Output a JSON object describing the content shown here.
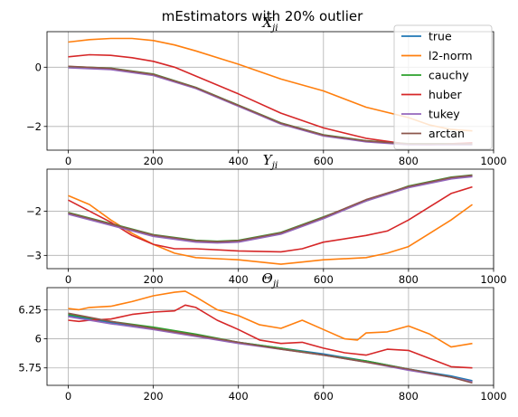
{
  "figure": {
    "suptitle": "mEstimators with 20% outlier"
  },
  "colors": {
    "true": "#1f77b4",
    "l2-norm": "#ff7f0e",
    "cauchy": "#2ca02c",
    "huber": "#d62728",
    "tukey": "#9467bd",
    "arctan": "#8c564b"
  },
  "legend": {
    "placement": "top-right of first panel",
    "entries": [
      "true",
      "l2-norm",
      "cauchy",
      "huber",
      "tukey",
      "arctan"
    ]
  },
  "chart_data": [
    {
      "type": "line",
      "title": "X_ji",
      "title_main": "X",
      "title_sub": "ji",
      "xlim": [
        -50,
        1000
      ],
      "ylim": [
        -2.8,
        1.2
      ],
      "xticks": [
        0,
        200,
        400,
        600,
        800,
        1000
      ],
      "yticks": [
        -2,
        0
      ],
      "grid": true,
      "series": [
        {
          "name": "true",
          "points": [
            [
              0,
              0.0
            ],
            [
              100,
              -0.05
            ],
            [
              200,
              -0.25
            ],
            [
              300,
              -0.7
            ],
            [
              400,
              -1.3
            ],
            [
              500,
              -1.9
            ],
            [
              600,
              -2.3
            ],
            [
              700,
              -2.5
            ],
            [
              800,
              -2.6
            ],
            [
              950,
              -2.6
            ]
          ]
        },
        {
          "name": "l2-norm",
          "points": [
            [
              0,
              0.85
            ],
            [
              50,
              0.93
            ],
            [
              100,
              0.97
            ],
            [
              150,
              0.97
            ],
            [
              200,
              0.9
            ],
            [
              250,
              0.75
            ],
            [
              300,
              0.55
            ],
            [
              400,
              0.1
            ],
            [
              500,
              -0.4
            ],
            [
              600,
              -0.8
            ],
            [
              700,
              -1.35
            ],
            [
              800,
              -1.7
            ],
            [
              850,
              -1.95
            ],
            [
              900,
              -2.1
            ],
            [
              950,
              -2.15
            ]
          ]
        },
        {
          "name": "cauchy",
          "points": [
            [
              0,
              0.02
            ],
            [
              100,
              -0.03
            ],
            [
              200,
              -0.23
            ],
            [
              300,
              -0.68
            ],
            [
              400,
              -1.28
            ],
            [
              500,
              -1.88
            ],
            [
              600,
              -2.28
            ],
            [
              700,
              -2.48
            ],
            [
              800,
              -2.58
            ],
            [
              950,
              -2.58
            ]
          ]
        },
        {
          "name": "huber",
          "points": [
            [
              0,
              0.35
            ],
            [
              50,
              0.42
            ],
            [
              100,
              0.4
            ],
            [
              150,
              0.32
            ],
            [
              200,
              0.2
            ],
            [
              250,
              0.0
            ],
            [
              300,
              -0.3
            ],
            [
              400,
              -0.9
            ],
            [
              500,
              -1.55
            ],
            [
              600,
              -2.05
            ],
            [
              700,
              -2.4
            ],
            [
              800,
              -2.6
            ],
            [
              850,
              -2.62
            ],
            [
              950,
              -2.55
            ]
          ]
        },
        {
          "name": "tukey",
          "points": [
            [
              0,
              -0.02
            ],
            [
              100,
              -0.08
            ],
            [
              200,
              -0.28
            ],
            [
              300,
              -0.72
            ],
            [
              400,
              -1.32
            ],
            [
              500,
              -1.92
            ],
            [
              600,
              -2.32
            ],
            [
              700,
              -2.52
            ],
            [
              800,
              -2.62
            ],
            [
              950,
              -2.62
            ]
          ]
        },
        {
          "name": "arctan",
          "points": [
            [
              0,
              0.03
            ],
            [
              100,
              -0.04
            ],
            [
              200,
              -0.24
            ],
            [
              300,
              -0.69
            ],
            [
              400,
              -1.29
            ],
            [
              500,
              -1.89
            ],
            [
              600,
              -2.29
            ],
            [
              700,
              -2.49
            ],
            [
              800,
              -2.59
            ],
            [
              950,
              -2.59
            ]
          ]
        }
      ]
    },
    {
      "type": "line",
      "title": "Y_ji",
      "title_main": "Y",
      "title_sub": "ji",
      "xlim": [
        -50,
        1000
      ],
      "ylim": [
        -3.3,
        -1.05
      ],
      "xticks": [
        0,
        200,
        400,
        600,
        800,
        1000
      ],
      "yticks": [
        -3,
        -2
      ],
      "grid": true,
      "series": [
        {
          "name": "true",
          "points": [
            [
              0,
              -2.05
            ],
            [
              100,
              -2.3
            ],
            [
              200,
              -2.55
            ],
            [
              300,
              -2.68
            ],
            [
              350,
              -2.7
            ],
            [
              400,
              -2.68
            ],
            [
              500,
              -2.5
            ],
            [
              600,
              -2.15
            ],
            [
              700,
              -1.75
            ],
            [
              800,
              -1.45
            ],
            [
              900,
              -1.25
            ],
            [
              950,
              -1.2
            ]
          ]
        },
        {
          "name": "l2-norm",
          "points": [
            [
              0,
              -1.65
            ],
            [
              50,
              -1.85
            ],
            [
              100,
              -2.2
            ],
            [
              150,
              -2.5
            ],
            [
              200,
              -2.75
            ],
            [
              250,
              -2.95
            ],
            [
              300,
              -3.05
            ],
            [
              400,
              -3.1
            ],
            [
              500,
              -3.2
            ],
            [
              550,
              -3.15
            ],
            [
              600,
              -3.1
            ],
            [
              700,
              -3.05
            ],
            [
              750,
              -2.95
            ],
            [
              800,
              -2.8
            ],
            [
              850,
              -2.5
            ],
            [
              900,
              -2.2
            ],
            [
              950,
              -1.85
            ]
          ]
        },
        {
          "name": "cauchy",
          "points": [
            [
              0,
              -2.03
            ],
            [
              100,
              -2.28
            ],
            [
              200,
              -2.53
            ],
            [
              300,
              -2.66
            ],
            [
              350,
              -2.68
            ],
            [
              400,
              -2.66
            ],
            [
              500,
              -2.48
            ],
            [
              600,
              -2.13
            ],
            [
              700,
              -1.77
            ],
            [
              800,
              -1.43
            ],
            [
              900,
              -1.23
            ],
            [
              950,
              -1.18
            ]
          ]
        },
        {
          "name": "huber",
          "points": [
            [
              0,
              -1.75
            ],
            [
              100,
              -2.25
            ],
            [
              150,
              -2.55
            ],
            [
              200,
              -2.75
            ],
            [
              250,
              -2.85
            ],
            [
              300,
              -2.85
            ],
            [
              400,
              -2.9
            ],
            [
              500,
              -2.92
            ],
            [
              550,
              -2.85
            ],
            [
              600,
              -2.7
            ],
            [
              700,
              -2.55
            ],
            [
              750,
              -2.45
            ],
            [
              800,
              -2.2
            ],
            [
              850,
              -1.9
            ],
            [
              900,
              -1.6
            ],
            [
              950,
              -1.45
            ]
          ]
        },
        {
          "name": "tukey",
          "points": [
            [
              0,
              -2.07
            ],
            [
              100,
              -2.32
            ],
            [
              200,
              -2.57
            ],
            [
              300,
              -2.7
            ],
            [
              350,
              -2.72
            ],
            [
              400,
              -2.7
            ],
            [
              500,
              -2.52
            ],
            [
              600,
              -2.17
            ],
            [
              700,
              -1.77
            ],
            [
              800,
              -1.47
            ],
            [
              900,
              -1.27
            ],
            [
              950,
              -1.22
            ]
          ]
        },
        {
          "name": "arctan",
          "points": [
            [
              0,
              -2.04
            ],
            [
              100,
              -2.29
            ],
            [
              200,
              -2.54
            ],
            [
              300,
              -2.67
            ],
            [
              350,
              -2.69
            ],
            [
              400,
              -2.67
            ],
            [
              500,
              -2.49
            ],
            [
              600,
              -2.14
            ],
            [
              700,
              -1.74
            ],
            [
              800,
              -1.44
            ],
            [
              900,
              -1.24
            ],
            [
              950,
              -1.19
            ]
          ]
        }
      ]
    },
    {
      "type": "line",
      "title": "Θ_ji",
      "title_main": "Θ",
      "title_sub": "ji",
      "xlim": [
        -50,
        1000
      ],
      "ylim": [
        5.6,
        6.44
      ],
      "xticks": [
        0,
        200,
        400,
        600,
        800,
        1000
      ],
      "yticks": [
        5.75,
        6.0,
        6.25
      ],
      "grid": true,
      "series": [
        {
          "name": "true",
          "points": [
            [
              0,
              6.2
            ],
            [
              100,
              6.14
            ],
            [
              200,
              6.09
            ],
            [
              300,
              6.03
            ],
            [
              400,
              5.97
            ],
            [
              500,
              5.92
            ],
            [
              600,
              5.87
            ],
            [
              700,
              5.81
            ],
            [
              800,
              5.74
            ],
            [
              900,
              5.68
            ],
            [
              950,
              5.64
            ]
          ]
        },
        {
          "name": "l2-norm",
          "points": [
            [
              0,
              6.26
            ],
            [
              25,
              6.25
            ],
            [
              50,
              6.27
            ],
            [
              100,
              6.28
            ],
            [
              150,
              6.32
            ],
            [
              200,
              6.37
            ],
            [
              250,
              6.4
            ],
            [
              275,
              6.41
            ],
            [
              300,
              6.36
            ],
            [
              350,
              6.25
            ],
            [
              400,
              6.2
            ],
            [
              450,
              6.12
            ],
            [
              500,
              6.09
            ],
            [
              550,
              6.16
            ],
            [
              600,
              6.08
            ],
            [
              650,
              6.0
            ],
            [
              680,
              5.99
            ],
            [
              700,
              6.05
            ],
            [
              750,
              6.06
            ],
            [
              800,
              6.11
            ],
            [
              850,
              6.04
            ],
            [
              900,
              5.93
            ],
            [
              950,
              5.96
            ]
          ]
        },
        {
          "name": "cauchy",
          "points": [
            [
              0,
              6.21
            ],
            [
              100,
              6.15
            ],
            [
              200,
              6.1
            ],
            [
              300,
              6.04
            ],
            [
              400,
              5.97
            ],
            [
              500,
              5.92
            ],
            [
              600,
              5.86
            ],
            [
              700,
              5.81
            ],
            [
              800,
              5.74
            ],
            [
              900,
              5.67
            ],
            [
              950,
              5.63
            ]
          ]
        },
        {
          "name": "huber",
          "points": [
            [
              0,
              6.16
            ],
            [
              25,
              6.15
            ],
            [
              50,
              6.16
            ],
            [
              100,
              6.17
            ],
            [
              150,
              6.21
            ],
            [
              200,
              6.23
            ],
            [
              250,
              6.24
            ],
            [
              275,
              6.29
            ],
            [
              300,
              6.27
            ],
            [
              350,
              6.16
            ],
            [
              400,
              6.08
            ],
            [
              450,
              5.99
            ],
            [
              500,
              5.96
            ],
            [
              550,
              5.97
            ],
            [
              600,
              5.92
            ],
            [
              650,
              5.88
            ],
            [
              700,
              5.86
            ],
            [
              750,
              5.91
            ],
            [
              800,
              5.9
            ],
            [
              850,
              5.83
            ],
            [
              900,
              5.76
            ],
            [
              950,
              5.75
            ]
          ]
        },
        {
          "name": "tukey",
          "points": [
            [
              0,
              6.19
            ],
            [
              100,
              6.13
            ],
            [
              200,
              6.08
            ],
            [
              300,
              6.02
            ],
            [
              400,
              5.96
            ],
            [
              500,
              5.91
            ],
            [
              600,
              5.86
            ],
            [
              700,
              5.8
            ],
            [
              800,
              5.73
            ],
            [
              900,
              5.67
            ],
            [
              950,
              5.63
            ]
          ]
        },
        {
          "name": "arctan",
          "points": [
            [
              0,
              6.22
            ],
            [
              100,
              6.15
            ],
            [
              200,
              6.09
            ],
            [
              300,
              6.03
            ],
            [
              400,
              5.97
            ],
            [
              500,
              5.91
            ],
            [
              600,
              5.86
            ],
            [
              700,
              5.8
            ],
            [
              800,
              5.74
            ],
            [
              900,
              5.67
            ],
            [
              950,
              5.62
            ]
          ]
        }
      ]
    }
  ]
}
